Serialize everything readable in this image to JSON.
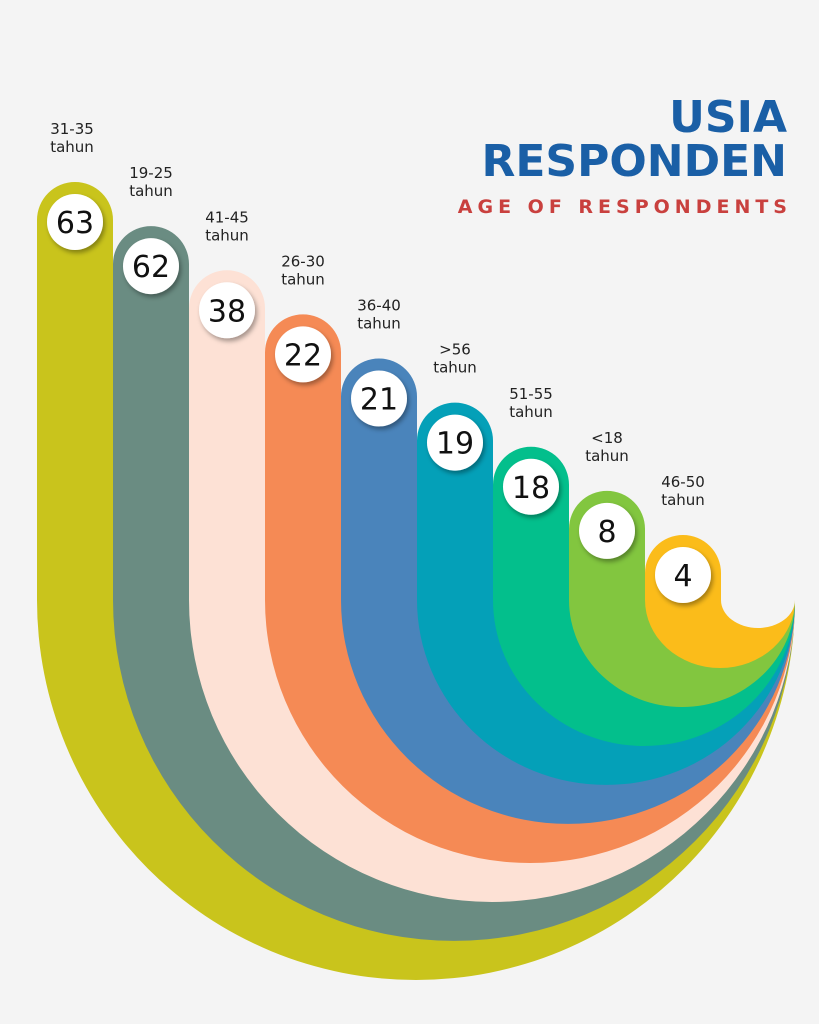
{
  "chart_data": {
    "type": "bar",
    "title": "USIA RESPONDEN",
    "subtitle": "AGE OF RESPONDENTS",
    "unit_label": "tahun",
    "categories": [
      "31-35",
      "19-25",
      "41-45",
      "26-30",
      "36-40",
      ">56",
      "51-55",
      "<18",
      "46-50"
    ],
    "values": [
      63,
      62,
      38,
      22,
      21,
      19,
      18,
      8,
      4
    ],
    "colors": [
      "#c9c41c",
      "#6a8c82",
      "#fde1d5",
      "#f58a55",
      "#4a84bb",
      "#04a0b8",
      "#03bf8c",
      "#82c63f",
      "#fbbc1a"
    ],
    "background": "#f4f4f4",
    "title_color": "#1a5fa6",
    "subtitle_color": "#c9403e",
    "sorted": "descending",
    "grid": false,
    "legend": "none"
  },
  "header": {
    "title_line1": "USIA",
    "title_line2": "RESPONDEN",
    "subtitle": "AGE OF RESPONDENTS"
  }
}
